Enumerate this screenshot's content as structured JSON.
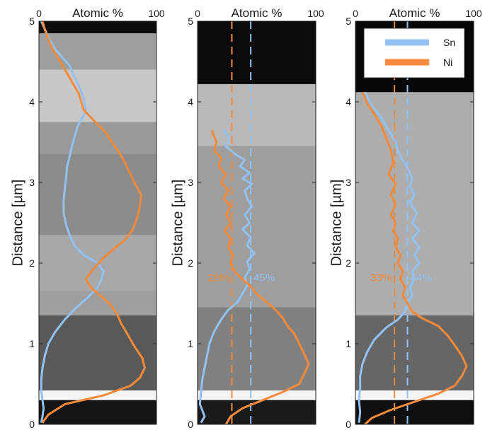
{
  "figure": {
    "ylabel": "Distance [µm]"
  },
  "colors": {
    "Sn": "#92c1f4",
    "Ni": "#f58a3b"
  },
  "chart_data": [
    {
      "type": "line",
      "title": "Atomic %",
      "xlim": [
        0,
        100
      ],
      "ylim": [
        0,
        5
      ],
      "xtick_labels": [
        "0",
        "100"
      ],
      "ytick_labels": [
        "0",
        "1",
        "2",
        "3",
        "4",
        "5"
      ],
      "grid": false,
      "series": [
        {
          "name": "Sn",
          "points": [
            [
              2,
              5.0
            ],
            [
              8,
              4.8
            ],
            [
              14,
              4.65
            ],
            [
              20,
              4.55
            ],
            [
              26,
              4.45
            ],
            [
              30,
              4.32
            ],
            [
              34,
              4.2
            ],
            [
              38,
              4.05
            ],
            [
              40,
              3.9
            ],
            [
              37,
              3.8
            ],
            [
              33,
              3.7
            ],
            [
              30,
              3.55
            ],
            [
              28,
              3.45
            ],
            [
              26,
              3.32
            ],
            [
              24,
              3.2
            ],
            [
              23,
              3.05
            ],
            [
              22,
              2.92
            ],
            [
              21,
              2.78
            ],
            [
              21,
              2.62
            ],
            [
              23,
              2.48
            ],
            [
              26,
              2.35
            ],
            [
              30,
              2.22
            ],
            [
              38,
              2.1
            ],
            [
              50,
              2.0
            ],
            [
              55,
              1.9
            ],
            [
              53,
              1.8
            ],
            [
              50,
              1.7
            ],
            [
              42,
              1.58
            ],
            [
              32,
              1.45
            ],
            [
              22,
              1.3
            ],
            [
              14,
              1.15
            ],
            [
              8,
              1.0
            ],
            [
              5,
              0.85
            ],
            [
              3,
              0.7
            ],
            [
              2,
              0.55
            ],
            [
              2,
              0.42
            ],
            [
              3,
              0.3
            ],
            [
              4,
              0.2
            ],
            [
              3,
              0.1
            ],
            [
              2,
              0.02
            ]
          ]
        },
        {
          "name": "Ni",
          "points": [
            [
              3,
              5.0
            ],
            [
              6,
              4.85
            ],
            [
              10,
              4.7
            ],
            [
              14,
              4.6
            ],
            [
              18,
              4.5
            ],
            [
              22,
              4.4
            ],
            [
              26,
              4.3
            ],
            [
              30,
              4.2
            ],
            [
              34,
              4.1
            ],
            [
              38,
              3.9
            ],
            [
              48,
              3.75
            ],
            [
              58,
              3.6
            ],
            [
              62,
              3.5
            ],
            [
              68,
              3.38
            ],
            [
              73,
              3.25
            ],
            [
              78,
              3.1
            ],
            [
              82,
              2.98
            ],
            [
              87,
              2.85
            ],
            [
              86,
              2.72
            ],
            [
              84,
              2.58
            ],
            [
              80,
              2.42
            ],
            [
              74,
              2.3
            ],
            [
              64,
              2.18
            ],
            [
              54,
              2.05
            ],
            [
              46,
              1.92
            ],
            [
              40,
              1.8
            ],
            [
              44,
              1.7
            ],
            [
              52,
              1.6
            ],
            [
              60,
              1.5
            ],
            [
              66,
              1.38
            ],
            [
              70,
              1.25
            ],
            [
              76,
              1.1
            ],
            [
              82,
              0.95
            ],
            [
              88,
              0.82
            ],
            [
              90,
              0.7
            ],
            [
              86,
              0.58
            ],
            [
              78,
              0.48
            ],
            [
              55,
              0.36
            ],
            [
              22,
              0.25
            ],
            [
              8,
              0.12
            ],
            [
              3,
              0.02
            ]
          ]
        }
      ],
      "bands": [
        {
          "from": 4.85,
          "to": 5.0,
          "shade": 0.05
        },
        {
          "from": 4.4,
          "to": 4.85,
          "shade": 0.62
        },
        {
          "from": 3.75,
          "to": 4.4,
          "shade": 0.78
        },
        {
          "from": 3.35,
          "to": 3.75,
          "shade": 0.6
        },
        {
          "from": 2.35,
          "to": 3.35,
          "shade": 0.55
        },
        {
          "from": 1.65,
          "to": 2.35,
          "shade": 0.66
        },
        {
          "from": 1.35,
          "to": 1.65,
          "shade": 0.62
        },
        {
          "from": 0.42,
          "to": 1.35,
          "shade": 0.35
        },
        {
          "from": 0.3,
          "to": 0.42,
          "shade": 0.96
        },
        {
          "from": 0.0,
          "to": 0.3,
          "shade": 0.08
        }
      ]
    },
    {
      "type": "line",
      "title": "Atomic %",
      "xlim": [
        0,
        100
      ],
      "ylim": [
        0,
        5
      ],
      "xtick_labels": [
        "0",
        "100"
      ],
      "ytick_labels": [
        "0",
        "1",
        "2",
        "3",
        "4",
        "5"
      ],
      "grid": false,
      "vlines": [
        {
          "series": "Ni",
          "x": 29,
          "label": "29%"
        },
        {
          "series": "Sn",
          "x": 45,
          "label": "45%"
        }
      ],
      "series": [
        {
          "name": "Sn",
          "points": [
            [
              22,
              3.65
            ],
            [
              27,
              3.55
            ],
            [
              24,
              3.45
            ],
            [
              32,
              3.35
            ],
            [
              40,
              3.28
            ],
            [
              36,
              3.2
            ],
            [
              44,
              3.12
            ],
            [
              38,
              3.05
            ],
            [
              46,
              2.98
            ],
            [
              40,
              2.9
            ],
            [
              42,
              2.8
            ],
            [
              46,
              2.7
            ],
            [
              40,
              2.6
            ],
            [
              44,
              2.5
            ],
            [
              38,
              2.42
            ],
            [
              45,
              2.32
            ],
            [
              42,
              2.22
            ],
            [
              48,
              2.12
            ],
            [
              42,
              2.02
            ],
            [
              44,
              1.92
            ],
            [
              40,
              1.82
            ],
            [
              42,
              1.72
            ],
            [
              38,
              1.62
            ],
            [
              34,
              1.52
            ],
            [
              26,
              1.42
            ],
            [
              20,
              1.3
            ],
            [
              14,
              1.15
            ],
            [
              10,
              1.0
            ],
            [
              8,
              0.85
            ],
            [
              6,
              0.7
            ],
            [
              4,
              0.55
            ],
            [
              3,
              0.4
            ],
            [
              2,
              0.25
            ],
            [
              6,
              0.1
            ],
            [
              3,
              0.02
            ]
          ]
        },
        {
          "name": "Ni",
          "points": [
            [
              12,
              3.65
            ],
            [
              16,
              3.5
            ],
            [
              14,
              3.4
            ],
            [
              20,
              3.3
            ],
            [
              18,
              3.2
            ],
            [
              24,
              3.1
            ],
            [
              20,
              3.0
            ],
            [
              26,
              2.9
            ],
            [
              22,
              2.8
            ],
            [
              28,
              2.7
            ],
            [
              24,
              2.6
            ],
            [
              28,
              2.5
            ],
            [
              23,
              2.4
            ],
            [
              28,
              2.3
            ],
            [
              26,
              2.2
            ],
            [
              30,
              2.1
            ],
            [
              28,
              2.0
            ],
            [
              31,
              1.9
            ],
            [
              38,
              1.8
            ],
            [
              44,
              1.72
            ],
            [
              50,
              1.62
            ],
            [
              58,
              1.52
            ],
            [
              66,
              1.42
            ],
            [
              72,
              1.32
            ],
            [
              76,
              1.22
            ],
            [
              82,
              1.12
            ],
            [
              86,
              1.0
            ],
            [
              90,
              0.88
            ],
            [
              94,
              0.75
            ],
            [
              90,
              0.62
            ],
            [
              86,
              0.5
            ],
            [
              72,
              0.4
            ],
            [
              55,
              0.3
            ],
            [
              38,
              0.2
            ],
            [
              28,
              0.1
            ],
            [
              24,
              0.0
            ]
          ]
        }
      ],
      "bands": [
        {
          "from": 4.22,
          "to": 5.0,
          "shade": 0.04
        },
        {
          "from": 3.45,
          "to": 4.22,
          "shade": 0.72
        },
        {
          "from": 1.45,
          "to": 3.45,
          "shade": 0.62
        },
        {
          "from": 0.42,
          "to": 1.45,
          "shade": 0.5
        },
        {
          "from": 0.3,
          "to": 0.42,
          "shade": 0.95
        },
        {
          "from": 0.0,
          "to": 0.3,
          "shade": 0.1
        }
      ]
    },
    {
      "type": "line",
      "title": "Atomic %",
      "xlim": [
        0,
        100
      ],
      "ylim": [
        0,
        5
      ],
      "xtick_labels": [
        "0",
        "100"
      ],
      "ytick_labels": [
        "0",
        "1",
        "2",
        "3",
        "4",
        "5"
      ],
      "grid": false,
      "legend": {
        "position": "top-right",
        "entries": [
          "Sn",
          "Ni"
        ]
      },
      "vlines": [
        {
          "series": "Ni",
          "x": 33,
          "label": "33%"
        },
        {
          "series": "Sn",
          "x": 44,
          "label": "44%"
        }
      ],
      "series": [
        {
          "name": "Sn",
          "points": [
            [
              8,
              4.12
            ],
            [
              14,
              3.95
            ],
            [
              22,
              3.8
            ],
            [
              28,
              3.65
            ],
            [
              34,
              3.5
            ],
            [
              36,
              3.38
            ],
            [
              40,
              3.28
            ],
            [
              44,
              3.18
            ],
            [
              48,
              3.05
            ],
            [
              46,
              2.95
            ],
            [
              50,
              2.85
            ],
            [
              46,
              2.75
            ],
            [
              52,
              2.62
            ],
            [
              48,
              2.5
            ],
            [
              54,
              2.4
            ],
            [
              48,
              2.3
            ],
            [
              54,
              2.2
            ],
            [
              50,
              2.1
            ],
            [
              54,
              2.0
            ],
            [
              48,
              1.9
            ],
            [
              50,
              1.8
            ],
            [
              46,
              1.7
            ],
            [
              48,
              1.6
            ],
            [
              44,
              1.5
            ],
            [
              42,
              1.4
            ],
            [
              36,
              1.3
            ],
            [
              26,
              1.2
            ],
            [
              16,
              1.05
            ],
            [
              10,
              0.9
            ],
            [
              6,
              0.75
            ],
            [
              4,
              0.6
            ],
            [
              4,
              0.45
            ],
            [
              3,
              0.3
            ],
            [
              4,
              0.15
            ],
            [
              3,
              0.02
            ]
          ]
        },
        {
          "name": "Ni",
          "points": [
            [
              6,
              4.12
            ],
            [
              10,
              3.98
            ],
            [
              16,
              3.85
            ],
            [
              22,
              3.7
            ],
            [
              26,
              3.55
            ],
            [
              30,
              3.4
            ],
            [
              32,
              3.25
            ],
            [
              28,
              3.1
            ],
            [
              34,
              2.98
            ],
            [
              30,
              2.85
            ],
            [
              34,
              2.72
            ],
            [
              30,
              2.6
            ],
            [
              34,
              2.5
            ],
            [
              32,
              2.4
            ],
            [
              36,
              2.3
            ],
            [
              34,
              2.2
            ],
            [
              38,
              2.1
            ],
            [
              36,
              2.0
            ],
            [
              40,
              1.9
            ],
            [
              38,
              1.8
            ],
            [
              42,
              1.7
            ],
            [
              40,
              1.6
            ],
            [
              44,
              1.5
            ],
            [
              48,
              1.4
            ],
            [
              56,
              1.32
            ],
            [
              70,
              1.22
            ],
            [
              78,
              1.1
            ],
            [
              84,
              0.98
            ],
            [
              90,
              0.85
            ],
            [
              94,
              0.72
            ],
            [
              90,
              0.6
            ],
            [
              84,
              0.48
            ],
            [
              70,
              0.38
            ],
            [
              50,
              0.28
            ],
            [
              30,
              0.18
            ],
            [
              14,
              0.08
            ],
            [
              8,
              0.0
            ]
          ]
        }
      ],
      "bands": [
        {
          "from": 4.12,
          "to": 5.0,
          "shade": 0.03
        },
        {
          "from": 1.35,
          "to": 4.12,
          "shade": 0.68
        },
        {
          "from": 0.42,
          "to": 1.35,
          "shade": 0.4
        },
        {
          "from": 0.3,
          "to": 0.42,
          "shade": 0.96
        },
        {
          "from": 0.0,
          "to": 0.3,
          "shade": 0.06
        }
      ]
    }
  ]
}
